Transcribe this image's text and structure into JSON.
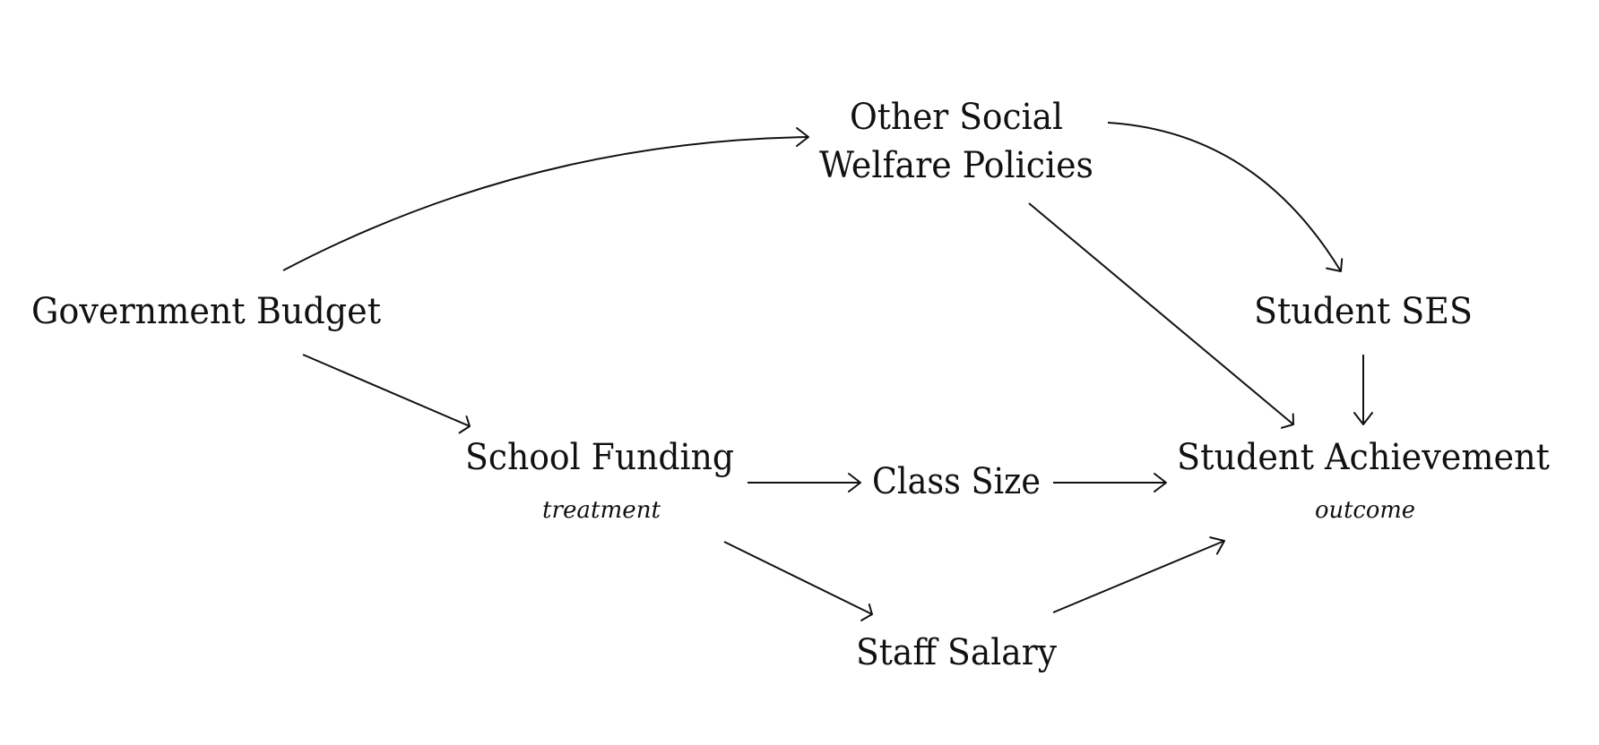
{
  "diagram": {
    "type": "causal-dag",
    "nodes": {
      "government_budget": {
        "label": "Government Budget"
      },
      "other_social": {
        "line1": "Other Social",
        "line2": "Welfare Policies"
      },
      "student_ses": {
        "label": "Student SES"
      },
      "school_funding": {
        "label": "School Funding",
        "role": "treatment"
      },
      "class_size": {
        "label": "Class Size"
      },
      "student_achievement": {
        "label": "Student Achievement",
        "role": "outcome"
      },
      "staff_salary": {
        "label": "Staff Salary"
      }
    },
    "edges": [
      {
        "from": "Government Budget",
        "to": "Other Social Welfare Policies"
      },
      {
        "from": "Government Budget",
        "to": "School Funding"
      },
      {
        "from": "Other Social Welfare Policies",
        "to": "Student SES"
      },
      {
        "from": "Other Social Welfare Policies",
        "to": "Student Achievement"
      },
      {
        "from": "Student SES",
        "to": "Student Achievement"
      },
      {
        "from": "School Funding",
        "to": "Class Size"
      },
      {
        "from": "Class Size",
        "to": "Student Achievement"
      },
      {
        "from": "School Funding",
        "to": "Staff Salary"
      },
      {
        "from": "Staff Salary",
        "to": "Student Achievement"
      }
    ]
  }
}
